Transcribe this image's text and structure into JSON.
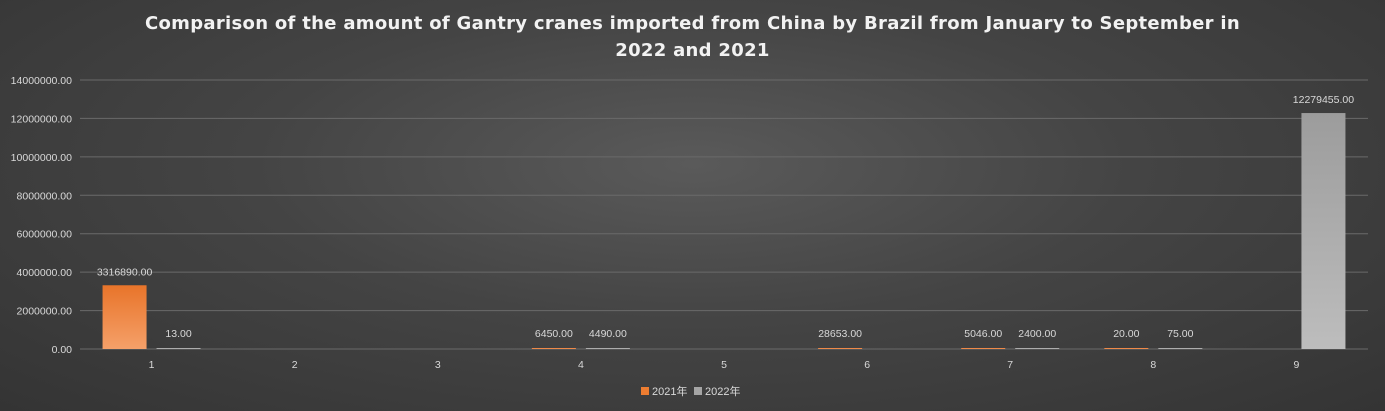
{
  "chart_data": {
    "type": "bar",
    "title": "Comparison of the amount of Gantry cranes imported from China by Brazil from January to September in 2022 and 2021",
    "categories": [
      "1",
      "2",
      "3",
      "4",
      "5",
      "6",
      "7",
      "8",
      "9"
    ],
    "series": [
      {
        "name": "2021年",
        "color": "#ED7D31",
        "values": [
          3316890,
          null,
          null,
          6450,
          null,
          28653,
          5046,
          20,
          null
        ],
        "labels": [
          "3316890.00",
          null,
          null,
          "6450.00",
          null,
          "28653.00",
          "5046.00",
          "20.00",
          null
        ]
      },
      {
        "name": "2022年",
        "color": "#A5A5A5",
        "values": [
          13,
          null,
          null,
          4490,
          null,
          null,
          2400,
          75,
          12279455
        ],
        "labels": [
          "13.00",
          null,
          null,
          "4490.00",
          null,
          null,
          "2400.00",
          "75.00",
          "12279455.00"
        ]
      }
    ],
    "y_ticks": [
      "0.00",
      "2000000.00",
      "4000000.00",
      "6000000.00",
      "8000000.00",
      "10000000.00",
      "12000000.00",
      "14000000.00"
    ],
    "ylim": [
      0,
      14000000
    ],
    "grid": true,
    "legend_position": "bottom"
  }
}
